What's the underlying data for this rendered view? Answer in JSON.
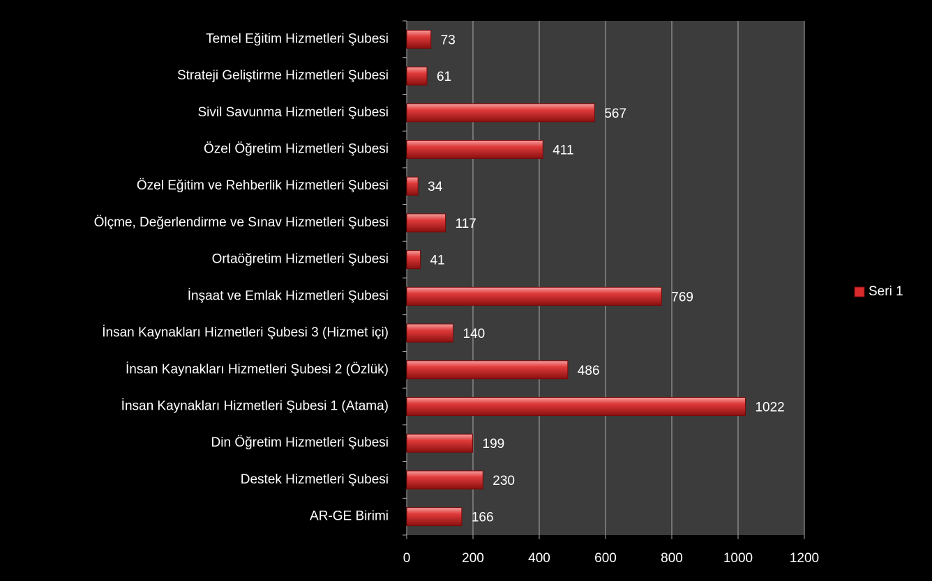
{
  "chart_data": {
    "type": "bar",
    "orientation": "horizontal",
    "categories": [
      "Temel Eğitim Hizmetleri Şubesi",
      "Strateji Geliştirme Hizmetleri Şubesi",
      "Sivil Savunma Hizmetleri Şubesi",
      "Özel Öğretim Hizmetleri Şubesi",
      "Özel Eğitim ve Rehberlik Hizmetleri Şubesi",
      "Ölçme, Değerlendirme ve Sınav Hizmetleri Şubesi",
      "Ortaöğretim Hizmetleri Şubesi",
      "İnşaat ve Emlak Hizmetleri Şubesi",
      "İnsan Kaynakları Hizmetleri Şubesi 3 (Hizmet içi)",
      "İnsan Kaynakları Hizmetleri Şubesi 2 (Özlük)",
      "İnsan Kaynakları Hizmetleri Şubesi 1 (Atama)",
      "Din Öğretim Hizmetleri Şubesi",
      "Destek Hizmetleri Şubesi",
      "AR-GE Birimi"
    ],
    "series": [
      {
        "name": "Seri 1",
        "color": "#d92b2b",
        "values": [
          73,
          61,
          567,
          411,
          34,
          117,
          41,
          769,
          140,
          486,
          1022,
          199,
          230,
          166
        ]
      }
    ],
    "xlim": [
      0,
      1200
    ],
    "xticks": [
      0,
      200,
      400,
      600,
      800,
      1000,
      1200
    ],
    "grid": true,
    "legend": "right"
  }
}
